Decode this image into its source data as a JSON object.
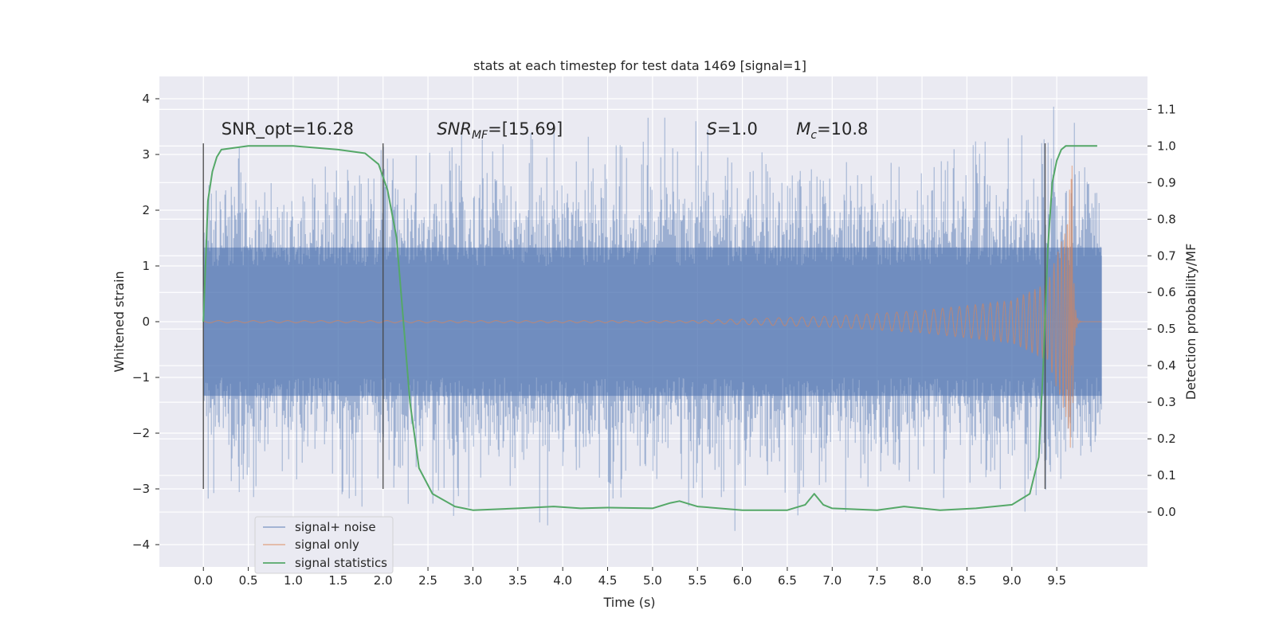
{
  "chart_data": {
    "type": "line",
    "title": "stats at each timestep for test data 1469 [signal=1]",
    "xlabel": "Time (s)",
    "ylabel": "Whitened strain",
    "ylabel_right": "Detection probability/MF",
    "xlim": [
      -0.49,
      10.51
    ],
    "ylim": [
      -4.4,
      4.4
    ],
    "ylim_right": [
      -0.15,
      1.19
    ],
    "x_ticks": [
      0.0,
      0.5,
      1.0,
      1.5,
      2.0,
      2.5,
      3.0,
      3.5,
      4.0,
      4.5,
      5.0,
      5.5,
      6.0,
      6.5,
      7.0,
      7.5,
      8.0,
      8.5,
      9.0,
      9.5
    ],
    "x_tick_labels": [
      "0.0",
      "0.5",
      "1.0",
      "1.5",
      "2.0",
      "2.5",
      "3.0",
      "3.5",
      "4.0",
      "4.5",
      "5.0",
      "5.5",
      "6.0",
      "6.5",
      "7.0",
      "7.5",
      "8.0",
      "8.5",
      "9.0",
      "9.5"
    ],
    "y_ticks": [
      4,
      3,
      2,
      1,
      0,
      -1,
      -2,
      -3,
      -4
    ],
    "y_tick_labels": [
      "4",
      "3",
      "2",
      "1",
      "0",
      "−1",
      "−2",
      "−3",
      "−4"
    ],
    "y_right_ticks": [
      1.1,
      1.0,
      0.9,
      0.8,
      0.7,
      0.6,
      0.5,
      0.4,
      0.3,
      0.2,
      0.1,
      0.0
    ],
    "y_right_tick_labels": [
      "1.1",
      "1.0",
      "0.9",
      "0.8",
      "0.7",
      "0.6",
      "0.5",
      "0.4",
      "0.3",
      "0.2",
      "0.1",
      "0.0"
    ],
    "grid": true,
    "legend_position": "lower-left",
    "colors": {
      "background": "#eaeaf2",
      "grid": "#ffffff",
      "noise": "#4c72b0",
      "signal": "#dd8452",
      "stats": "#55a868",
      "vline": "#444444"
    },
    "series": [
      {
        "name": "signal+ noise",
        "axis": "left",
        "description_env": {
          "x_start": 0.0,
          "x_end": 10.0,
          "quantiles": [
            {
              "x": 0.0,
              "p_high": 1.8,
              "p_low": -1.8,
              "max": 2.5,
              "min": -3.0
            },
            {
              "x": 0.3,
              "p_high": 2.0,
              "p_low": -2.0,
              "max": 2.6,
              "min": -3.5
            },
            {
              "x": 1.0,
              "p_high": 2.0,
              "p_low": -2.0,
              "max": 2.3,
              "min": -3.2
            },
            {
              "x": 2.6,
              "p_high": 2.1,
              "p_low": -2.1,
              "max": 3.4,
              "min": -3.5
            },
            {
              "x": 3.8,
              "p_high": 2.2,
              "p_low": -2.2,
              "max": 3.7,
              "min": -3.7
            },
            {
              "x": 4.7,
              "p_high": 2.2,
              "p_low": -2.2,
              "max": 3.8,
              "min": -3.4
            },
            {
              "x": 5.5,
              "p_high": 2.2,
              "p_low": -2.2,
              "max": 3.6,
              "min": -3.3
            },
            {
              "x": 5.9,
              "p_high": 2.1,
              "p_low": -2.1,
              "max": 3.0,
              "min": -3.9
            },
            {
              "x": 8.2,
              "p_high": 2.1,
              "p_low": -2.1,
              "max": 3.0,
              "min": -3.3
            },
            {
              "x": 9.65,
              "p_high": 2.3,
              "p_low": -2.3,
              "max": 4.1,
              "min": -3.0
            },
            {
              "x": 10.0,
              "p_high": 1.9,
              "p_low": -1.9,
              "max": 2.2,
              "min": -1.8
            }
          ]
        }
      },
      {
        "name": "signal only",
        "axis": "left",
        "x_start": 0.0,
        "merger_time": 9.67,
        "peak_amplitude": 2.8,
        "envelope": [
          {
            "x": 5.0,
            "amp": 0.0
          },
          {
            "x": 6.0,
            "amp": 0.05
          },
          {
            "x": 7.0,
            "amp": 0.1
          },
          {
            "x": 8.0,
            "amp": 0.2
          },
          {
            "x": 9.0,
            "amp": 0.38
          },
          {
            "x": 9.4,
            "amp": 0.7
          },
          {
            "x": 9.6,
            "amp": 1.7
          },
          {
            "x": 9.67,
            "amp": 2.8
          }
        ]
      },
      {
        "name": "signal statistics",
        "axis": "right",
        "x": [
          0.0,
          0.05,
          0.1,
          0.15,
          0.2,
          0.5,
          1.0,
          1.5,
          1.8,
          1.95,
          2.05,
          2.15,
          2.25,
          2.3,
          2.4,
          2.55,
          2.8,
          3.0,
          3.5,
          3.9,
          4.2,
          4.5,
          5.0,
          5.2,
          5.3,
          5.5,
          6.0,
          6.5,
          6.7,
          6.8,
          6.9,
          7.0,
          7.5,
          7.8,
          8.2,
          8.6,
          9.0,
          9.2,
          9.3,
          9.35,
          9.4,
          9.45,
          9.5,
          9.55,
          9.6,
          9.65,
          9.7,
          9.95
        ],
        "y": [
          0.52,
          0.85,
          0.93,
          0.97,
          0.99,
          1.0,
          1.0,
          0.99,
          0.98,
          0.95,
          0.88,
          0.75,
          0.45,
          0.3,
          0.12,
          0.05,
          0.015,
          0.005,
          0.01,
          0.015,
          0.01,
          0.012,
          0.01,
          0.025,
          0.03,
          0.015,
          0.005,
          0.005,
          0.02,
          0.05,
          0.02,
          0.01,
          0.005,
          0.015,
          0.005,
          0.01,
          0.02,
          0.05,
          0.15,
          0.4,
          0.72,
          0.9,
          0.96,
          0.99,
          1.0,
          1.0,
          1.0,
          1.0
        ]
      }
    ],
    "vlines": [
      0.0,
      2.0,
      9.37
    ],
    "vline_range": [
      -3.0,
      3.2
    ],
    "annotations": [
      {
        "x": 0.2,
        "y": 3.3,
        "text": "SNR_opt=16.28",
        "math": false
      },
      {
        "x": 2.6,
        "y": 3.3,
        "text_var": "SNR",
        "text_sub": "MF",
        "text_rest": "=[15.69]",
        "math": true
      },
      {
        "x": 5.6,
        "y": 3.3,
        "text_var": "S",
        "text_sub": "",
        "text_rest": "=1.0",
        "math": true
      },
      {
        "x": 6.6,
        "y": 3.3,
        "text_var": "M",
        "text_sub": "c",
        "text_rest": "=10.8",
        "math": true
      }
    ]
  }
}
